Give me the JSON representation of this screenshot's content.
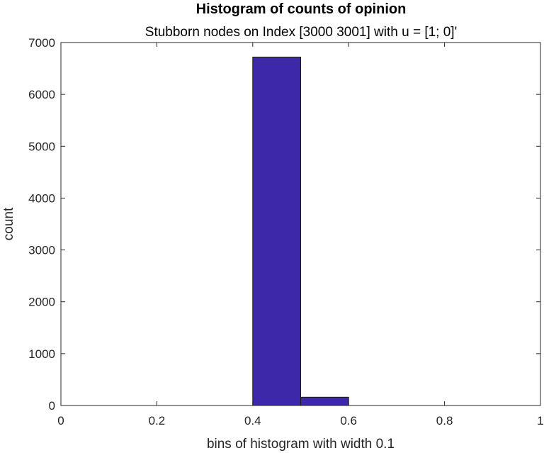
{
  "chart_data": {
    "type": "bar",
    "title": "Histogram of counts of opinion",
    "subtitle": "Stubborn nodes on Index [3000 3001] with u = [1; 0]'",
    "xlabel": "bins of histogram with width 0.1",
    "ylabel": "count",
    "xlim": [
      0,
      1
    ],
    "ylim": [
      0,
      7000
    ],
    "xticks": [
      0,
      0.2,
      0.4,
      0.6,
      0.8,
      1
    ],
    "xtick_labels": [
      "0",
      "0.2",
      "0.4",
      "0.6",
      "0.8",
      "1"
    ],
    "yticks": [
      0,
      1000,
      2000,
      3000,
      4000,
      5000,
      6000,
      7000
    ],
    "ytick_labels": [
      "0",
      "1000",
      "2000",
      "3000",
      "4000",
      "5000",
      "6000",
      "7000"
    ],
    "bin_width": 0.1,
    "bins": [
      {
        "start": 0.4,
        "end": 0.5,
        "count": 6720
      },
      {
        "start": 0.5,
        "end": 0.6,
        "count": 160
      }
    ],
    "grid": false,
    "bar_color": "#3c28a8"
  }
}
